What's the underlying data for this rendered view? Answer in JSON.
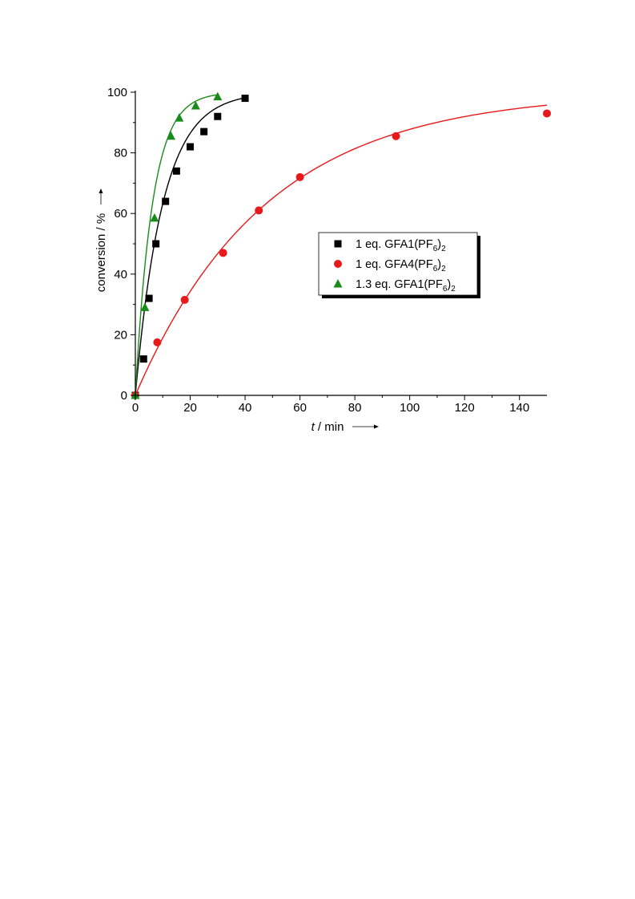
{
  "chart_data": {
    "type": "scatter",
    "xlabel": {
      "italic": "t",
      "rest": " / min"
    },
    "ylabel": "conversion / %",
    "xlim": [
      0,
      150
    ],
    "ylim": [
      0,
      100
    ],
    "x_ticks": [
      0,
      20,
      40,
      60,
      80,
      100,
      120,
      140
    ],
    "y_ticks": [
      0,
      20,
      40,
      60,
      80,
      100
    ],
    "grid": false,
    "legend_position": "right-middle",
    "series": [
      {
        "name": "1 eq. GFA1(PF6)2",
        "legend": {
          "pre": "1 eq. GFA1(PF",
          "sub1": "6",
          "mid": ")",
          "sub2": "2"
        },
        "marker": "square",
        "color": "#000000",
        "x": [
          0,
          3,
          5,
          7.5,
          11,
          15,
          20,
          25,
          30,
          40
        ],
        "y": [
          0,
          12,
          32,
          50,
          64,
          74,
          82,
          87,
          92,
          98
        ],
        "fit": {
          "model": "first-order",
          "k": 0.1,
          "xmax": 40
        }
      },
      {
        "name": "1 eq. GFA4(PF6)2",
        "legend": {
          "pre": "1 eq. GFA4(PF",
          "sub1": "6",
          "mid": ")",
          "sub2": "2"
        },
        "marker": "circle",
        "color": "#e8191a",
        "x": [
          0,
          8,
          18,
          32,
          45,
          60,
          95,
          150
        ],
        "y": [
          0,
          17.5,
          31.5,
          47,
          61,
          72,
          85.5,
          93
        ],
        "fit": {
          "model": "first-order",
          "k": 0.021,
          "xmax": 150
        }
      },
      {
        "name": "1.3 eq. GFA1(PF6)2",
        "legend": {
          "pre": "1.3 eq. GFA1(PF",
          "sub1": "6",
          "mid": ")",
          "sub2": "2"
        },
        "marker": "triangle",
        "color": "#1a8a1a",
        "x": [
          0,
          3.5,
          7,
          13,
          16,
          22,
          30
        ],
        "y": [
          0,
          29,
          58.5,
          85.5,
          91.5,
          95.5,
          98.5
        ],
        "fit": {
          "model": "first-order",
          "k": 0.16,
          "xmax": 30
        }
      }
    ]
  }
}
